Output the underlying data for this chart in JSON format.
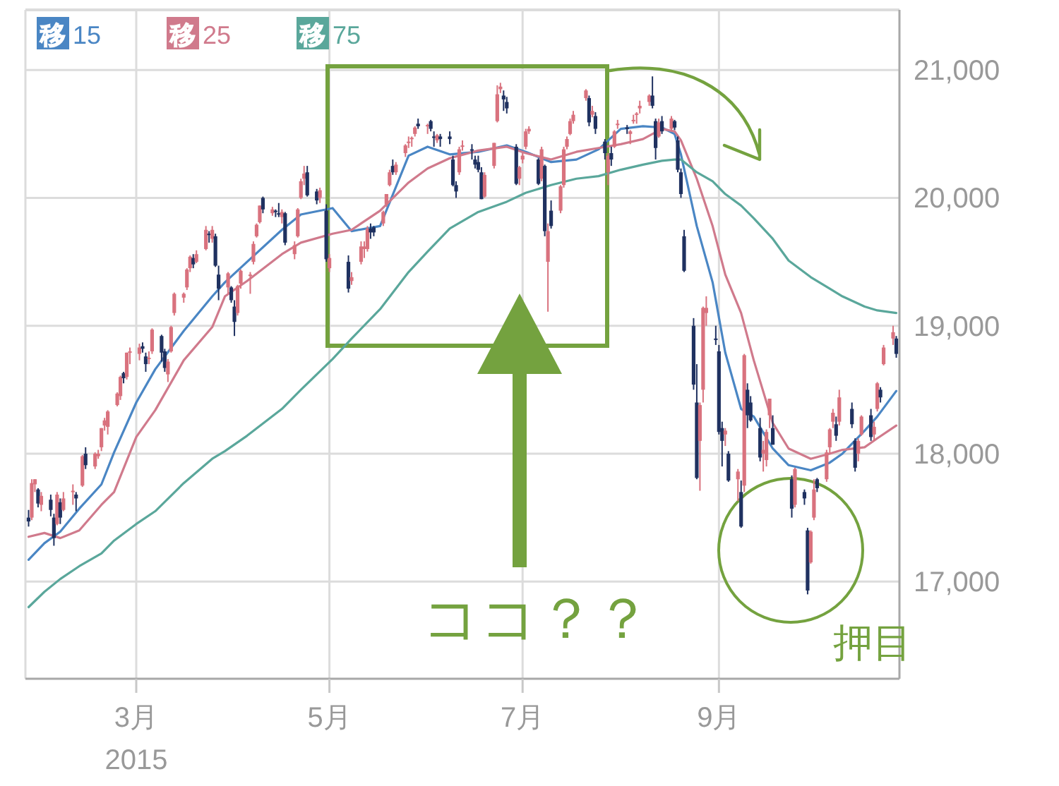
{
  "chart_data": {
    "type": "candlestick",
    "x": [
      "2015-01-26",
      "2015-01-27",
      "2015-01-28",
      "2015-01-29",
      "2015-01-30",
      "2015-02-02",
      "2015-02-03",
      "2015-02-04",
      "2015-02-05",
      "2015-02-06",
      "2015-02-09",
      "2015-02-10",
      "2015-02-12",
      "2015-02-13",
      "2015-02-16",
      "2015-02-17",
      "2015-02-18",
      "2015-02-19",
      "2015-02-20",
      "2015-02-23",
      "2015-02-24",
      "2015-02-25",
      "2015-02-26",
      "2015-02-27",
      "2015-03-02",
      "2015-03-03",
      "2015-03-04",
      "2015-03-05",
      "2015-03-06",
      "2015-03-09",
      "2015-03-10",
      "2015-03-11",
      "2015-03-12",
      "2015-03-13",
      "2015-03-16",
      "2015-03-17",
      "2015-03-18",
      "2015-03-19",
      "2015-03-20",
      "2015-03-23",
      "2015-03-24",
      "2015-03-25",
      "2015-03-26",
      "2015-03-27",
      "2015-03-30",
      "2015-03-31",
      "2015-04-01",
      "2015-04-02",
      "2015-04-03",
      "2015-04-06",
      "2015-04-07",
      "2015-04-08",
      "2015-04-09",
      "2015-04-10",
      "2015-04-13",
      "2015-04-14",
      "2015-04-15",
      "2015-04-16",
      "2015-04-17",
      "2015-04-20",
      "2015-04-21",
      "2015-04-22",
      "2015-04-23",
      "2015-04-24",
      "2015-04-27",
      "2015-04-28",
      "2015-04-30",
      "2015-05-01",
      "2015-05-07",
      "2015-05-08",
      "2015-05-11",
      "2015-05-12",
      "2015-05-13",
      "2015-05-14",
      "2015-05-15",
      "2015-05-18",
      "2015-05-19",
      "2015-05-20",
      "2015-05-21",
      "2015-05-22",
      "2015-05-25",
      "2015-05-26",
      "2015-05-27",
      "2015-05-28",
      "2015-05-29",
      "2015-06-01",
      "2015-06-02",
      "2015-06-03",
      "2015-06-04",
      "2015-06-05",
      "2015-06-08",
      "2015-06-09",
      "2015-06-10",
      "2015-06-11",
      "2015-06-12",
      "2015-06-15",
      "2015-06-16",
      "2015-06-17",
      "2015-06-18",
      "2015-06-19",
      "2015-06-22",
      "2015-06-23",
      "2015-06-24",
      "2015-06-25",
      "2015-06-26",
      "2015-06-29",
      "2015-06-30",
      "2015-07-01",
      "2015-07-02",
      "2015-07-03",
      "2015-07-06",
      "2015-07-07",
      "2015-07-08",
      "2015-07-09",
      "2015-07-10",
      "2015-07-13",
      "2015-07-14",
      "2015-07-15",
      "2015-07-16",
      "2015-07-17",
      "2015-07-21",
      "2015-07-22",
      "2015-07-23",
      "2015-07-24",
      "2015-07-27",
      "2015-07-28",
      "2015-07-29",
      "2015-07-30",
      "2015-07-31",
      "2015-08-03",
      "2015-08-04",
      "2015-08-05",
      "2015-08-06",
      "2015-08-07",
      "2015-08-10",
      "2015-08-11",
      "2015-08-12",
      "2015-08-13",
      "2015-08-14",
      "2015-08-17",
      "2015-08-18",
      "2015-08-19",
      "2015-08-20",
      "2015-08-21",
      "2015-08-24",
      "2015-08-25",
      "2015-08-26",
      "2015-08-27",
      "2015-08-28",
      "2015-08-31",
      "2015-09-01",
      "2015-09-02",
      "2015-09-03",
      "2015-09-04",
      "2015-09-07",
      "2015-09-08",
      "2015-09-09",
      "2015-09-10",
      "2015-09-11",
      "2015-09-14",
      "2015-09-15",
      "2015-09-16",
      "2015-09-17",
      "2015-09-18",
      "2015-09-24",
      "2015-09-25",
      "2015-09-28",
      "2015-09-29",
      "2015-09-30",
      "2015-10-01",
      "2015-10-02",
      "2015-10-05",
      "2015-10-06",
      "2015-10-07",
      "2015-10-08",
      "2015-10-09",
      "2015-10-13",
      "2015-10-14",
      "2015-10-15",
      "2015-10-16",
      "2015-10-19",
      "2015-10-20",
      "2015-10-21",
      "2015-10-22",
      "2015-10-23",
      "2015-10-26",
      "2015-10-27"
    ],
    "ohlc": [
      [
        17500,
        17560,
        17430,
        17470
      ],
      [
        17500,
        17800,
        17480,
        17770
      ],
      [
        17760,
        17800,
        17700,
        17800
      ],
      [
        17720,
        17730,
        17580,
        17610
      ],
      [
        17600,
        17700,
        17550,
        17670
      ],
      [
        17640,
        17680,
        17510,
        17560
      ],
      [
        17500,
        17530,
        17280,
        17340
      ],
      [
        17450,
        17700,
        17440,
        17680
      ],
      [
        17620,
        17650,
        17450,
        17500
      ],
      [
        17560,
        17700,
        17550,
        17650
      ],
      [
        17700,
        17760,
        17600,
        17710
      ],
      [
        17680,
        17700,
        17550,
        17650
      ],
      [
        17750,
        17990,
        17740,
        17980
      ],
      [
        18000,
        18050,
        17880,
        17910
      ],
      [
        17900,
        18010,
        17880,
        18000
      ],
      [
        17980,
        18030,
        17960,
        18000
      ],
      [
        18050,
        18200,
        18020,
        18200
      ],
      [
        18220,
        18280,
        18180,
        18260
      ],
      [
        18210,
        18340,
        18150,
        18330
      ],
      [
        18380,
        18480,
        18370,
        18470
      ],
      [
        18450,
        18610,
        18420,
        18600
      ],
      [
        18630,
        18640,
        18550,
        18590
      ],
      [
        18600,
        18790,
        18580,
        18790
      ],
      [
        18800,
        18830,
        18700,
        18800
      ],
      [
        18780,
        18860,
        18730,
        18830
      ],
      [
        18840,
        18870,
        18790,
        18820
      ],
      [
        18760,
        18790,
        18640,
        18700
      ],
      [
        18740,
        18800,
        18700,
        18750
      ],
      [
        18800,
        18980,
        18780,
        18970
      ],
      [
        18920,
        18930,
        18720,
        18790
      ],
      [
        18800,
        18820,
        18640,
        18670
      ],
      [
        18620,
        18740,
        18560,
        18720
      ],
      [
        18800,
        19000,
        18790,
        18990
      ],
      [
        19100,
        19260,
        19080,
        19250
      ],
      [
        19220,
        19260,
        19180,
        19250
      ],
      [
        19300,
        19450,
        19280,
        19440
      ],
      [
        19450,
        19550,
        19420,
        19540
      ],
      [
        19530,
        19560,
        19450,
        19480
      ],
      [
        19500,
        19590,
        19490,
        19560
      ],
      [
        19600,
        19780,
        19590,
        19750
      ],
      [
        19720,
        19740,
        19650,
        19710
      ],
      [
        19680,
        19780,
        19650,
        19750
      ],
      [
        19700,
        19720,
        19460,
        19470
      ],
      [
        19400,
        19470,
        19200,
        19290
      ],
      [
        19300,
        19420,
        19250,
        19410
      ],
      [
        19300,
        19310,
        19180,
        19200
      ],
      [
        19150,
        19200,
        18920,
        19030
      ],
      [
        19100,
        19320,
        19080,
        19310
      ],
      [
        19330,
        19440,
        19290,
        19430
      ],
      [
        19400,
        19420,
        19250,
        19400
      ],
      [
        19500,
        19660,
        19480,
        19640
      ],
      [
        19700,
        19800,
        19690,
        19790
      ],
      [
        19810,
        19940,
        19800,
        19940
      ],
      [
        20000,
        20010,
        19880,
        19910
      ],
      [
        19880,
        19930,
        19860,
        19910
      ],
      [
        19890,
        19910,
        19850,
        19900
      ],
      [
        19880,
        19960,
        19850,
        19870
      ],
      [
        19850,
        19910,
        19800,
        19890
      ],
      [
        19880,
        19890,
        19630,
        19650
      ],
      [
        19560,
        19660,
        19520,
        19630
      ],
      [
        19700,
        19920,
        19690,
        19910
      ],
      [
        20000,
        20150,
        19990,
        20130
      ],
      [
        20150,
        20250,
        20100,
        20190
      ],
      [
        20200,
        20250,
        20010,
        20020
      ],
      [
        20050,
        20070,
        19950,
        19980
      ],
      [
        20000,
        20080,
        19960,
        20060
      ],
      [
        19900,
        19950,
        19500,
        19520
      ],
      [
        19450,
        19560,
        19420,
        19530
      ],
      [
        19500,
        19550,
        19260,
        19290
      ],
      [
        19350,
        19420,
        19320,
        19380
      ],
      [
        19500,
        19660,
        19480,
        19620
      ],
      [
        19600,
        19660,
        19530,
        19620
      ],
      [
        19600,
        19780,
        19580,
        19760
      ],
      [
        19760,
        19800,
        19680,
        19730
      ],
      [
        19770,
        19780,
        19700,
        19730
      ],
      [
        19800,
        19900,
        19780,
        19890
      ],
      [
        19950,
        20030,
        19930,
        20030
      ],
      [
        20100,
        20220,
        20090,
        20200
      ],
      [
        20250,
        20300,
        20180,
        20200
      ],
      [
        20200,
        20280,
        20180,
        20260
      ],
      [
        20350,
        20420,
        20320,
        20410
      ],
      [
        20440,
        20480,
        20390,
        20440
      ],
      [
        20460,
        20480,
        20400,
        20470
      ],
      [
        20500,
        20560,
        20480,
        20550
      ],
      [
        20580,
        20620,
        20540,
        20560
      ],
      [
        20560,
        20580,
        20500,
        20570
      ],
      [
        20600,
        20610,
        20520,
        20540
      ],
      [
        20480,
        20520,
        20400,
        20470
      ],
      [
        20450,
        20500,
        20430,
        20490
      ],
      [
        20480,
        20500,
        20400,
        20460
      ],
      [
        20480,
        20520,
        20420,
        20460
      ],
      [
        20300,
        20330,
        20090,
        20100
      ],
      [
        20100,
        20130,
        20000,
        20050
      ],
      [
        20200,
        20400,
        20180,
        20380
      ],
      [
        20400,
        20450,
        20370,
        20410
      ],
      [
        20380,
        20420,
        20300,
        20380
      ],
      [
        20300,
        20330,
        20230,
        20260
      ],
      [
        20280,
        20330,
        20200,
        20220
      ],
      [
        20200,
        20240,
        19990,
        19990
      ],
      [
        20010,
        20200,
        20000,
        20180
      ],
      [
        20250,
        20430,
        20230,
        20430
      ],
      [
        20600,
        20880,
        20590,
        20810
      ],
      [
        20850,
        20900,
        20820,
        20870
      ],
      [
        20800,
        20840,
        20680,
        20770
      ],
      [
        20750,
        20790,
        20660,
        20700
      ],
      [
        20400,
        20420,
        20100,
        20110
      ],
      [
        20150,
        20250,
        20100,
        20240
      ],
      [
        20300,
        20350,
        20270,
        20330
      ],
      [
        20400,
        20540,
        20380,
        20520
      ],
      [
        20520,
        20560,
        20500,
        20540
      ],
      [
        20300,
        20310,
        20100,
        20110
      ],
      [
        20150,
        20400,
        20130,
        20380
      ],
      [
        20250,
        20260,
        19700,
        19740
      ],
      [
        19500,
        19800,
        19110,
        19740
      ],
      [
        19900,
        19980,
        19760,
        19780
      ],
      [
        19900,
        20100,
        19880,
        20090
      ],
      [
        20100,
        20400,
        20080,
        20380
      ],
      [
        20400,
        20480,
        20380,
        20460
      ],
      [
        20500,
        20620,
        20490,
        20600
      ],
      [
        20600,
        20680,
        20580,
        20650
      ],
      [
        20780,
        20850,
        20760,
        20840
      ],
      [
        20780,
        20800,
        20560,
        20590
      ],
      [
        20650,
        20720,
        20630,
        20680
      ],
      [
        20640,
        20670,
        20500,
        20540
      ],
      [
        20440,
        20460,
        20300,
        20350
      ],
      [
        20200,
        20350,
        20100,
        20330
      ],
      [
        20350,
        20400,
        20250,
        20300
      ],
      [
        20400,
        20530,
        20390,
        20520
      ],
      [
        20570,
        20610,
        20540,
        20580
      ],
      [
        20550,
        20570,
        20500,
        20540
      ],
      [
        20500,
        20530,
        20420,
        20520
      ],
      [
        20600,
        20650,
        20580,
        20610
      ],
      [
        20650,
        20670,
        20580,
        20660
      ],
      [
        20700,
        20760,
        20660,
        20720
      ],
      [
        20750,
        20810,
        20720,
        20800
      ],
      [
        20800,
        20950,
        20700,
        20720
      ],
      [
        20600,
        20620,
        20300,
        20390
      ],
      [
        20480,
        20620,
        20470,
        20590
      ],
      [
        20600,
        20640,
        20500,
        20520
      ],
      [
        20540,
        20640,
        20520,
        20620
      ],
      [
        20600,
        20610,
        20530,
        20550
      ],
      [
        20450,
        20480,
        20200,
        20220
      ],
      [
        20200,
        20230,
        20000,
        20030
      ],
      [
        19700,
        19750,
        19420,
        19430
      ],
      [
        19000,
        19060,
        18500,
        18540
      ],
      [
        18400,
        18700,
        17800,
        17810
      ],
      [
        18100,
        18400,
        17710,
        18380
      ],
      [
        18500,
        19150,
        18400,
        19140
      ],
      [
        19100,
        19230,
        19000,
        19140
      ],
      [
        18900,
        19000,
        18850,
        18890
      ],
      [
        18800,
        18850,
        18150,
        18170
      ],
      [
        18200,
        18250,
        17900,
        18100
      ],
      [
        18150,
        18200,
        18060,
        18180
      ],
      [
        18000,
        18020,
        17780,
        17790
      ],
      [
        17800,
        17880,
        17630,
        17860
      ],
      [
        17700,
        17790,
        17420,
        17430
      ],
      [
        17750,
        18780,
        17700,
        18770
      ],
      [
        18500,
        18550,
        18200,
        18300
      ],
      [
        18400,
        18450,
        18250,
        18260
      ],
      [
        18200,
        18280,
        17940,
        17970
      ],
      [
        18000,
        18100,
        17860,
        18030
      ],
      [
        17950,
        18190,
        17900,
        18170
      ],
      [
        18300,
        18430,
        18200,
        18430
      ],
      [
        18200,
        18300,
        18070,
        18070
      ],
      [
        17800,
        17830,
        17500,
        17570
      ],
      [
        17600,
        17890,
        17580,
        17880
      ],
      [
        17700,
        17720,
        17600,
        17650
      ],
      [
        17400,
        17420,
        16900,
        16930
      ],
      [
        17150,
        17400,
        17140,
        17390
      ],
      [
        17500,
        17800,
        17480,
        17720
      ],
      [
        17800,
        17810,
        17700,
        17730
      ],
      [
        17800,
        18030,
        17780,
        18010
      ],
      [
        18050,
        18200,
        18000,
        18190
      ],
      [
        18250,
        18350,
        18200,
        18320
      ],
      [
        18230,
        18290,
        18100,
        18140
      ],
      [
        18250,
        18500,
        18220,
        18440
      ],
      [
        18350,
        18400,
        18200,
        18230
      ],
      [
        18100,
        18120,
        17860,
        17890
      ],
      [
        18000,
        18120,
        17940,
        18100
      ],
      [
        18150,
        18300,
        18140,
        18290
      ],
      [
        18300,
        18350,
        18100,
        18130
      ],
      [
        18150,
        18250,
        18100,
        18210
      ],
      [
        18350,
        18560,
        18330,
        18550
      ],
      [
        18500,
        18520,
        18400,
        18440
      ],
      [
        18700,
        18850,
        18690,
        18830
      ],
      [
        18900,
        19000,
        18850,
        18950
      ],
      [
        18900,
        18920,
        18750,
        18780
      ]
    ],
    "colors": [
      "#1f3160",
      "#d9727e",
      "#d9727e",
      "#1f3160",
      "#d9727e",
      "#1f3160",
      "#1f3160",
      "#d9727e",
      "#1f3160",
      "#d9727e",
      "#d9727e",
      "#1f3160",
      "#d9727e",
      "#1f3160",
      "#d9727e",
      "#d9727e",
      "#d9727e",
      "#d9727e",
      "#d9727e",
      "#d9727e",
      "#d9727e",
      "#1f3160",
      "#d9727e",
      "#d9727e",
      "#d9727e",
      "#1f3160",
      "#1f3160",
      "#d9727e",
      "#d9727e",
      "#1f3160",
      "#1f3160",
      "#d9727e",
      "#d9727e",
      "#d9727e",
      "#d9727e",
      "#d9727e",
      "#d9727e",
      "#1f3160",
      "#d9727e",
      "#d9727e",
      "#1f3160",
      "#d9727e",
      "#1f3160",
      "#1f3160",
      "#d9727e",
      "#1f3160",
      "#1f3160",
      "#d9727e",
      "#d9727e",
      "#d9727e",
      "#d9727e",
      "#d9727e",
      "#d9727e",
      "#1f3160",
      "#d9727e",
      "#1f3160",
      "#1f3160",
      "#d9727e",
      "#1f3160",
      "#d9727e",
      "#d9727e",
      "#d9727e",
      "#d9727e",
      "#1f3160",
      "#1f3160",
      "#d9727e",
      "#1f3160",
      "#d9727e",
      "#1f3160",
      "#d9727e",
      "#d9727e",
      "#d9727e",
      "#d9727e",
      "#1f3160",
      "#1f3160",
      "#d9727e",
      "#d9727e",
      "#d9727e",
      "#1f3160",
      "#d9727e",
      "#d9727e",
      "#d9727e",
      "#d9727e",
      "#d9727e",
      "#1f3160",
      "#d9727e",
      "#1f3160",
      "#1f3160",
      "#d9727e",
      "#1f3160",
      "#1f3160",
      "#1f3160",
      "#1f3160",
      "#d9727e",
      "#d9727e",
      "#1f3160",
      "#1f3160",
      "#1f3160",
      "#1f3160",
      "#d9727e",
      "#d9727e",
      "#d9727e",
      "#d9727e",
      "#1f3160",
      "#1f3160",
      "#1f3160",
      "#d9727e",
      "#d9727e",
      "#d9727e",
      "#d9727e",
      "#1f3160",
      "#d9727e",
      "#1f3160",
      "#d9727e",
      "#1f3160",
      "#d9727e",
      "#d9727e",
      "#d9727e",
      "#d9727e",
      "#d9727e",
      "#d9727e",
      "#1f3160",
      "#d9727e",
      "#1f3160",
      "#1f3160",
      "#d9727e",
      "#1f3160",
      "#d9727e",
      "#d9727e",
      "#1f3160",
      "#d9727e",
      "#d9727e",
      "#d9727e",
      "#d9727e",
      "#d9727e",
      "#1f3160",
      "#1f3160",
      "#d9727e",
      "#1f3160",
      "#d9727e",
      "#1f3160",
      "#1f3160",
      "#1f3160",
      "#1f3160",
      "#1f3160",
      "#1f3160",
      "#d9727e",
      "#d9727e",
      "#d9727e",
      "#1f3160",
      "#1f3160",
      "#1f3160",
      "#d9727e",
      "#1f3160",
      "#d9727e",
      "#1f3160",
      "#d9727e",
      "#1f3160",
      "#1f3160",
      "#1f3160",
      "#d9727e",
      "#d9727e",
      "#d9727e",
      "#1f3160",
      "#1f3160",
      "#d9727e",
      "#1f3160",
      "#1f3160",
      "#d9727e",
      "#d9727e",
      "#1f3160",
      "#d9727e",
      "#d9727e",
      "#d9727e",
      "#1f3160",
      "#d9727e",
      "#1f3160",
      "#1f3160",
      "#d9727e",
      "#d9727e",
      "#1f3160",
      "#d9727e",
      "#d9727e",
      "#1f3160",
      "#d9727e",
      "#d9727e",
      "#1f3160"
    ],
    "series": [
      {
        "type": "line",
        "name": "移 15",
        "color": "#4a86c4",
        "x": [
          "2015-01-26",
          "2015-01-31",
          "2015-02-05",
          "2015-02-11",
          "2015-02-18",
          "2015-02-22",
          "2015-03-01",
          "2015-03-07",
          "2015-03-16",
          "2015-03-25",
          "2015-03-29",
          "2015-04-05",
          "2015-04-16",
          "2015-04-22",
          "2015-05-02",
          "2015-05-08",
          "2015-05-17",
          "2015-05-26",
          "2015-06-01",
          "2015-06-08",
          "2015-06-17",
          "2015-06-26",
          "2015-07-02",
          "2015-07-10",
          "2015-07-18",
          "2015-07-25",
          "2015-08-01",
          "2015-08-08",
          "2015-08-14",
          "2015-08-18",
          "2015-08-20",
          "2015-08-25",
          "2015-08-30",
          "2015-09-03",
          "2015-09-08",
          "2015-09-12",
          "2015-09-18",
          "2015-09-23",
          "2015-09-30",
          "2015-10-06",
          "2015-10-10",
          "2015-10-17",
          "2015-10-21",
          "2015-10-27"
        ],
        "values": [
          17170,
          17300,
          17390,
          17570,
          17760,
          18010,
          18400,
          18660,
          18960,
          19230,
          19340,
          19500,
          19750,
          19870,
          19920,
          19740,
          19780,
          20330,
          20400,
          20340,
          20360,
          20410,
          20360,
          20280,
          20300,
          20380,
          20540,
          20560,
          20550,
          20500,
          20340,
          19780,
          19340,
          18790,
          18350,
          18290,
          18040,
          17910,
          17870,
          17930,
          18000,
          18180,
          18290,
          18490
        ]
      },
      {
        "type": "line",
        "name": "移 25",
        "color": "#d07a8c",
        "x": [
          "2015-01-26",
          "2015-01-31",
          "2015-02-05",
          "2015-02-11",
          "2015-02-18",
          "2015-02-22",
          "2015-03-01",
          "2015-03-07",
          "2015-03-16",
          "2015-03-25",
          "2015-03-29",
          "2015-04-05",
          "2015-04-16",
          "2015-04-22",
          "2015-05-02",
          "2015-05-08",
          "2015-05-17",
          "2015-05-26",
          "2015-06-01",
          "2015-06-08",
          "2015-06-17",
          "2015-06-26",
          "2015-07-02",
          "2015-07-10",
          "2015-07-18",
          "2015-07-25",
          "2015-08-01",
          "2015-08-08",
          "2015-08-14",
          "2015-08-18",
          "2015-08-20",
          "2015-08-25",
          "2015-08-30",
          "2015-09-03",
          "2015-09-08",
          "2015-09-12",
          "2015-09-18",
          "2015-09-23",
          "2015-09-30",
          "2015-10-06",
          "2015-10-10",
          "2015-10-17",
          "2015-10-21",
          "2015-10-27"
        ],
        "values": [
          17350,
          17380,
          17340,
          17400,
          17600,
          17700,
          18130,
          18340,
          18730,
          18990,
          19230,
          19350,
          19560,
          19650,
          19720,
          19750,
          19900,
          20120,
          20230,
          20310,
          20370,
          20400,
          20350,
          20300,
          20360,
          20390,
          20420,
          20460,
          20540,
          20520,
          20450,
          20150,
          19780,
          19400,
          19100,
          18730,
          18240,
          18040,
          17960,
          18000,
          18030,
          18050,
          18120,
          18220
        ]
      },
      {
        "type": "line",
        "name": "移 75",
        "color": "#5aa79b",
        "x": [
          "2015-01-26",
          "2015-01-31",
          "2015-02-05",
          "2015-02-11",
          "2015-02-18",
          "2015-02-22",
          "2015-03-01",
          "2015-03-07",
          "2015-03-16",
          "2015-03-25",
          "2015-03-29",
          "2015-04-05",
          "2015-04-16",
          "2015-04-22",
          "2015-05-02",
          "2015-05-08",
          "2015-05-17",
          "2015-05-26",
          "2015-06-01",
          "2015-06-08",
          "2015-06-17",
          "2015-06-26",
          "2015-07-02",
          "2015-07-10",
          "2015-07-18",
          "2015-07-25",
          "2015-08-01",
          "2015-08-08",
          "2015-08-14",
          "2015-08-18",
          "2015-08-20",
          "2015-08-25",
          "2015-08-30",
          "2015-09-03",
          "2015-09-08",
          "2015-09-12",
          "2015-09-18",
          "2015-09-23",
          "2015-09-30",
          "2015-10-06",
          "2015-10-10",
          "2015-10-17",
          "2015-10-21",
          "2015-10-27"
        ],
        "values": [
          16800,
          16920,
          17020,
          17120,
          17220,
          17320,
          17450,
          17550,
          17770,
          17960,
          18020,
          18140,
          18350,
          18500,
          18740,
          18900,
          19130,
          19420,
          19580,
          19760,
          19890,
          19970,
          20040,
          20100,
          20150,
          20170,
          20220,
          20260,
          20290,
          20300,
          20300,
          20200,
          20130,
          20030,
          19940,
          19840,
          19680,
          19510,
          19380,
          19290,
          19230,
          19150,
          19120,
          19100
        ]
      }
    ],
    "xlim": [
      "2015-01-25",
      "2015-10-28"
    ],
    "xticks": [
      {
        "value": "2015-03-01",
        "label": "3月\n2015"
      },
      {
        "value": "2015-05-01",
        "label": "5月"
      },
      {
        "value": "2015-07-01",
        "label": "7月"
      },
      {
        "value": "2015-09-01",
        "label": "9月"
      }
    ],
    "ylim": [
      16240,
      21470
    ],
    "yticks": [
      {
        "value": 17000,
        "label": "17,000"
      },
      {
        "value": 18000,
        "label": "18,000"
      },
      {
        "value": 19000,
        "label": "19,000"
      },
      {
        "value": 20000,
        "label": "20,000"
      },
      {
        "value": 21000,
        "label": "21,000"
      }
    ],
    "grid": true,
    "legend": "top left",
    "annotations": [
      "ココ？？",
      "押目"
    ]
  }
}
